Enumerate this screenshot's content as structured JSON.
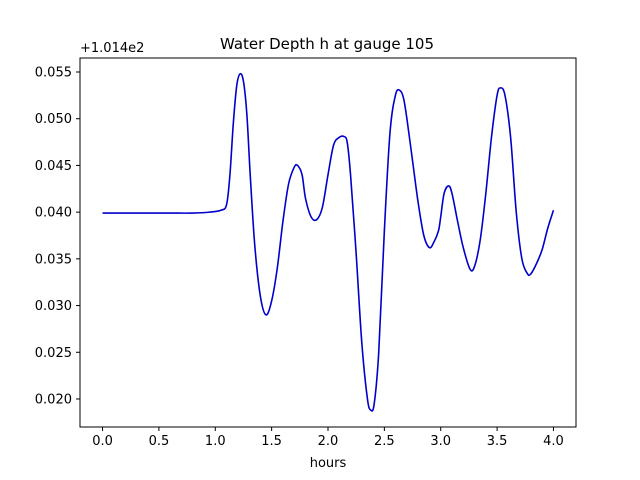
{
  "chart_data": {
    "type": "line",
    "title": "Water Depth h at gauge 105",
    "xlabel": "hours",
    "ylabel": "",
    "offset_label": "+1.014e2",
    "xlim": [
      -0.2,
      4.2
    ],
    "ylim": [
      0.017,
      0.0565
    ],
    "x_ticks": [
      0.0,
      0.5,
      1.0,
      1.5,
      2.0,
      2.5,
      3.0,
      3.5,
      4.0
    ],
    "x_tick_labels": [
      "0.0",
      "0.5",
      "1.0",
      "1.5",
      "2.0",
      "2.5",
      "3.0",
      "3.5",
      "4.0"
    ],
    "y_ticks": [
      0.02,
      0.025,
      0.03,
      0.035,
      0.04,
      0.045,
      0.05,
      0.055
    ],
    "y_tick_labels": [
      "0.020",
      "0.025",
      "0.030",
      "0.035",
      "0.040",
      "0.045",
      "0.050",
      "0.055"
    ],
    "grid": false,
    "colors": {
      "line": "#0000cc",
      "axes": "#000000"
    },
    "series": [
      {
        "values_note_free": true,
        "x": [
          0.0,
          0.2,
          0.4,
          0.6,
          0.8,
          0.95,
          1.05,
          1.1,
          1.13,
          1.16,
          1.19,
          1.22,
          1.25,
          1.28,
          1.31,
          1.35,
          1.4,
          1.45,
          1.5,
          1.55,
          1.6,
          1.65,
          1.7,
          1.73,
          1.77,
          1.8,
          1.85,
          1.9,
          1.95,
          2.0,
          2.05,
          2.1,
          2.14,
          2.17,
          2.2,
          2.25,
          2.3,
          2.35,
          2.38,
          2.41,
          2.45,
          2.5,
          2.55,
          2.6,
          2.64,
          2.67,
          2.7,
          2.75,
          2.8,
          2.85,
          2.9,
          2.94,
          2.98,
          3.0,
          3.03,
          3.07,
          3.1,
          3.15,
          3.2,
          3.26,
          3.3,
          3.35,
          3.4,
          3.45,
          3.5,
          3.53,
          3.57,
          3.62,
          3.67,
          3.72,
          3.77,
          3.8,
          3.85,
          3.9,
          3.95,
          4.0
        ],
        "y": [
          0.0399,
          0.0399,
          0.0399,
          0.0399,
          0.0399,
          0.04,
          0.0402,
          0.0408,
          0.044,
          0.0495,
          0.0535,
          0.0548,
          0.054,
          0.0505,
          0.044,
          0.0365,
          0.031,
          0.029,
          0.0305,
          0.034,
          0.039,
          0.043,
          0.0448,
          0.045,
          0.044,
          0.0415,
          0.0395,
          0.0392,
          0.0405,
          0.044,
          0.0472,
          0.048,
          0.0481,
          0.0475,
          0.044,
          0.0355,
          0.026,
          0.02,
          0.0188,
          0.0195,
          0.025,
          0.038,
          0.0485,
          0.0526,
          0.053,
          0.0522,
          0.05,
          0.0455,
          0.041,
          0.0375,
          0.0362,
          0.0368,
          0.038,
          0.0395,
          0.042,
          0.0428,
          0.042,
          0.039,
          0.0362,
          0.0339,
          0.0342,
          0.037,
          0.042,
          0.048,
          0.0525,
          0.0533,
          0.0525,
          0.048,
          0.04,
          0.035,
          0.0334,
          0.0334,
          0.0345,
          0.036,
          0.0383,
          0.0402
        ]
      }
    ]
  }
}
